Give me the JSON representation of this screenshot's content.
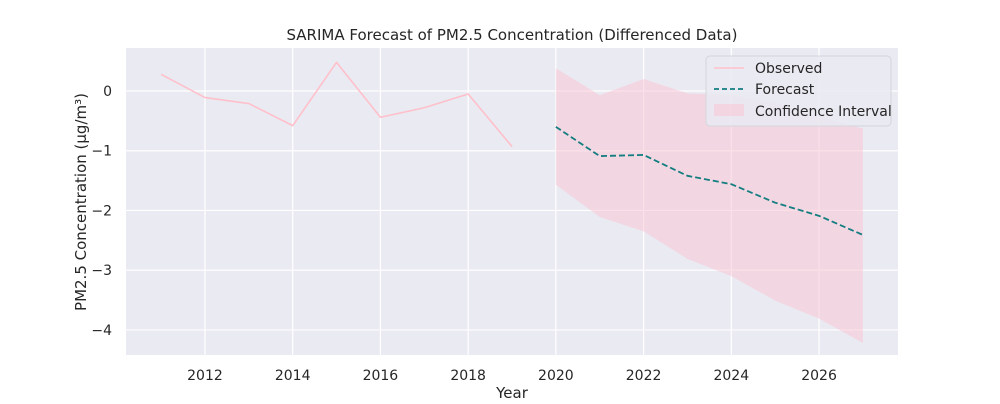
{
  "chart_data": {
    "type": "line",
    "title": "SARIMA Forecast of PM2.5 Concentration (Differenced Data)",
    "xlabel": "Year",
    "ylabel": "PM2.5 Concentration (µg/m³)",
    "xlim": [
      2010.2,
      2027.8
    ],
    "ylim": [
      -4.42,
      0.72
    ],
    "x_ticks": [
      2012,
      2014,
      2016,
      2018,
      2020,
      2022,
      2024,
      2026
    ],
    "y_ticks": [
      0,
      -1,
      -2,
      -3,
      -4
    ],
    "x_tick_labels": [
      "2012",
      "2014",
      "2016",
      "2018",
      "2020",
      "2022",
      "2024",
      "2026"
    ],
    "y_tick_labels": [
      "0",
      "−1",
      "−2",
      "−3",
      "−4"
    ],
    "grid": true,
    "legend_position": "top-right",
    "series": [
      {
        "name": "Observed",
        "style": "solid",
        "color": "#ffc0cb",
        "x": [
          2011,
          2012,
          2013,
          2014,
          2015,
          2016,
          2017,
          2018,
          2019
        ],
        "values": [
          0.28,
          -0.11,
          -0.21,
          -0.58,
          0.48,
          -0.44,
          -0.28,
          -0.05,
          -0.93
        ]
      },
      {
        "name": "Forecast",
        "style": "dashed",
        "color": "#147d80",
        "x": [
          2020,
          2021,
          2022,
          2023,
          2024,
          2025,
          2026,
          2027
        ],
        "values": [
          -0.6,
          -1.09,
          -1.07,
          -1.42,
          -1.56,
          -1.87,
          -2.09,
          -2.41
        ]
      }
    ],
    "confidence_interval": {
      "name": "Confidence Interval",
      "color": "#f7c6d6",
      "x": [
        2020,
        2021,
        2022,
        2023,
        2024,
        2025,
        2026,
        2027
      ],
      "lower": [
        -1.57,
        -2.11,
        -2.35,
        -2.81,
        -3.1,
        -3.51,
        -3.81,
        -4.22
      ],
      "upper": [
        0.38,
        -0.07,
        0.2,
        -0.04,
        -0.07,
        -0.19,
        -0.43,
        -0.63
      ]
    },
    "colors": {
      "plot_background": "#eaeaf2",
      "grid": "#ffffff",
      "text": "#262626"
    }
  }
}
